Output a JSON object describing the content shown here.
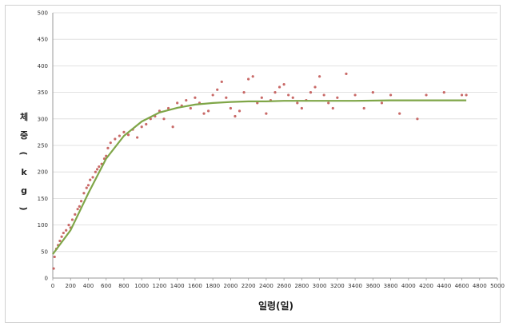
{
  "chart_data": {
    "type": "scatter",
    "title": "",
    "xlabel": "일령(일)",
    "ylabel": "체중 (kg)",
    "ylabel_chars": [
      "체",
      "중",
      "(",
      "k",
      "g",
      ")"
    ],
    "xlim": [
      0,
      5000
    ],
    "ylim": [
      0,
      500
    ],
    "x_ticks": [
      0,
      200,
      400,
      600,
      800,
      1000,
      1200,
      1400,
      1600,
      1800,
      2000,
      2200,
      2400,
      2600,
      2800,
      3000,
      3200,
      3400,
      3600,
      3800,
      4000,
      4200,
      4400,
      4600,
      4800,
      5000
    ],
    "y_ticks": [
      0,
      50,
      100,
      150,
      200,
      250,
      300,
      350,
      400,
      450,
      500
    ],
    "grid": "horizontal",
    "legend": "none",
    "colors": {
      "points": "#c0504d",
      "fit": "#7fa648",
      "grid": "#d9d9d9",
      "axis": "#999999"
    },
    "series": [
      {
        "kind": "scatter",
        "points": [
          [
            10,
            18
          ],
          [
            20,
            40
          ],
          [
            40,
            55
          ],
          [
            60,
            62
          ],
          [
            80,
            70
          ],
          [
            100,
            78
          ],
          [
            120,
            85
          ],
          [
            150,
            90
          ],
          [
            180,
            100
          ],
          [
            200,
            95
          ],
          [
            220,
            110
          ],
          [
            250,
            120
          ],
          [
            280,
            130
          ],
          [
            300,
            135
          ],
          [
            320,
            145
          ],
          [
            350,
            160
          ],
          [
            380,
            170
          ],
          [
            400,
            175
          ],
          [
            420,
            185
          ],
          [
            450,
            190
          ],
          [
            480,
            200
          ],
          [
            500,
            205
          ],
          [
            520,
            210
          ],
          [
            550,
            215
          ],
          [
            580,
            225
          ],
          [
            600,
            230
          ],
          [
            620,
            245
          ],
          [
            650,
            255
          ],
          [
            700,
            262
          ],
          [
            750,
            268
          ],
          [
            800,
            275
          ],
          [
            850,
            270
          ],
          [
            900,
            280
          ],
          [
            950,
            265
          ],
          [
            1000,
            285
          ],
          [
            1050,
            290
          ],
          [
            1100,
            300
          ],
          [
            1150,
            305
          ],
          [
            1200,
            315
          ],
          [
            1250,
            300
          ],
          [
            1300,
            320
          ],
          [
            1350,
            285
          ],
          [
            1400,
            330
          ],
          [
            1450,
            325
          ],
          [
            1500,
            335
          ],
          [
            1550,
            320
          ],
          [
            1600,
            340
          ],
          [
            1650,
            330
          ],
          [
            1700,
            310
          ],
          [
            1750,
            315
          ],
          [
            1800,
            345
          ],
          [
            1850,
            355
          ],
          [
            1900,
            370
          ],
          [
            1950,
            340
          ],
          [
            2000,
            320
          ],
          [
            2050,
            305
          ],
          [
            2100,
            315
          ],
          [
            2150,
            350
          ],
          [
            2200,
            375
          ],
          [
            2250,
            380
          ],
          [
            2300,
            330
          ],
          [
            2350,
            340
          ],
          [
            2400,
            310
          ],
          [
            2450,
            335
          ],
          [
            2500,
            350
          ],
          [
            2550,
            360
          ],
          [
            2600,
            365
          ],
          [
            2650,
            345
          ],
          [
            2700,
            340
          ],
          [
            2750,
            330
          ],
          [
            2800,
            320
          ],
          [
            2850,
            335
          ],
          [
            2900,
            350
          ],
          [
            2950,
            360
          ],
          [
            3000,
            380
          ],
          [
            3050,
            345
          ],
          [
            3100,
            330
          ],
          [
            3150,
            320
          ],
          [
            3200,
            340
          ],
          [
            3300,
            385
          ],
          [
            3400,
            345
          ],
          [
            3500,
            320
          ],
          [
            3600,
            350
          ],
          [
            3700,
            330
          ],
          [
            3800,
            345
          ],
          [
            3900,
            310
          ],
          [
            4100,
            300
          ],
          [
            4200,
            345
          ],
          [
            4400,
            350
          ],
          [
            4600,
            345
          ],
          [
            4650,
            345
          ]
        ]
      },
      {
        "kind": "fit",
        "x": [
          0,
          200,
          400,
          600,
          800,
          1000,
          1200,
          1400,
          1600,
          1800,
          2000,
          2200,
          2400,
          2600,
          2800,
          3000,
          3400,
          3800,
          4200,
          4650
        ],
        "y": [
          45,
          90,
          160,
          225,
          268,
          295,
          312,
          321,
          327,
          330,
          332,
          333,
          333,
          334,
          334,
          334,
          334,
          335,
          335,
          335
        ]
      }
    ]
  }
}
